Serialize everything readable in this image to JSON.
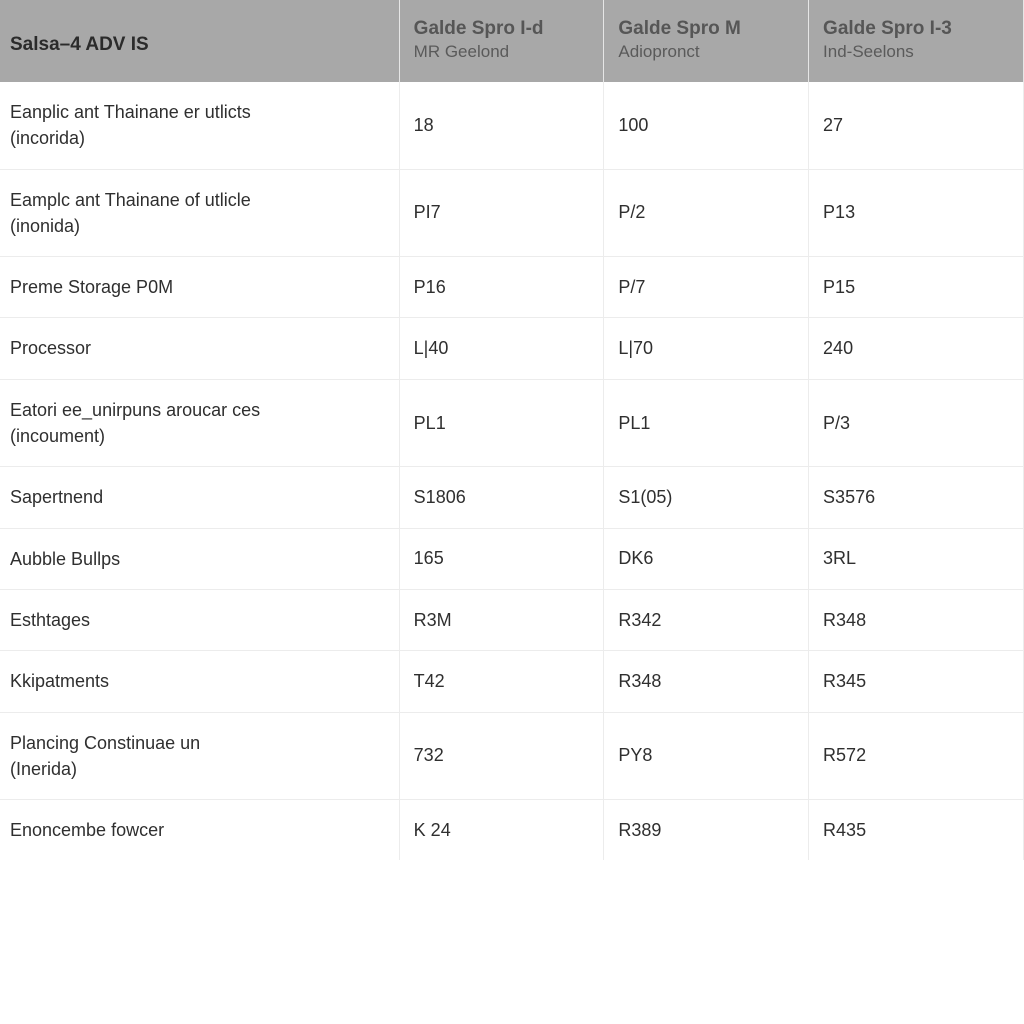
{
  "table": {
    "type": "table",
    "background_color": "#ffffff",
    "header_bg": "#a8a8a8",
    "grid_color": "#ececec",
    "text_color": "#2b2b2b",
    "header": {
      "first_cell": "Salsa–4 ADV IS",
      "columns": [
        {
          "title": "Galde Spro I-d",
          "sub": "MR Geelond"
        },
        {
          "title": "Galde Spro M",
          "sub": "Adiopronct"
        },
        {
          "title": "Galde Spro I-3",
          "sub": "Ind-Seelons"
        }
      ]
    },
    "rows": [
      {
        "label": "Eanplic ant Thainane er utlicts",
        "sub": "(incorida)",
        "cells": [
          "18",
          "100",
          "27"
        ]
      },
      {
        "label": "Eamplc ant Thainane of utlicle",
        "sub": "(inonida)",
        "cells": [
          "PI7",
          "P/2",
          "P13"
        ]
      },
      {
        "label": "Preme Storage P0M",
        "sub": "",
        "cells": [
          "P16",
          "P/7",
          "P15"
        ]
      },
      {
        "label": "Processor",
        "sub": "",
        "cells": [
          "L|40",
          "L|70",
          "240"
        ]
      },
      {
        "label": "Eatori ee_unirpuns aroucar ces",
        "sub": "(incoument)",
        "cells": [
          "PL1",
          "PL1",
          "P/3"
        ]
      },
      {
        "label": "Sapertnend",
        "sub": "",
        "cells": [
          "S1806",
          "S1(05)",
          "S3576"
        ]
      },
      {
        "label": "Aubble Bullps",
        "sub": "",
        "cells": [
          "165",
          "DK6",
          "3RL"
        ]
      },
      {
        "label": "Esthtages",
        "sub": "",
        "cells": [
          "R3M",
          "R342",
          "R348"
        ]
      },
      {
        "label": "Kkipatments",
        "sub": "",
        "cells": [
          "T42",
          "R348",
          "R345"
        ]
      },
      {
        "label": "Plancing Constinuae un",
        "sub": "(Inerida)",
        "cells": [
          "732",
          "PY8",
          "R572"
        ]
      },
      {
        "label": "Enoncembe fowcer",
        "sub": "",
        "cells": [
          "K 24",
          "R389",
          "R435"
        ]
      }
    ],
    "column_widths_pct": [
      39,
      20,
      20,
      21
    ],
    "font_family": "Segoe UI",
    "cell_fontsize_pt": 14,
    "header_fontsize_pt": 14
  }
}
